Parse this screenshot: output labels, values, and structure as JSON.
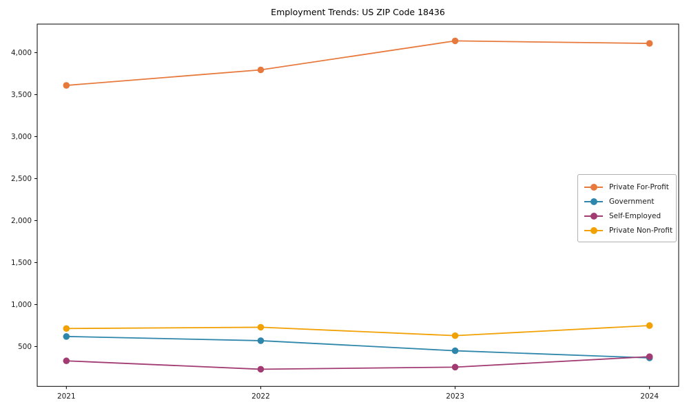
{
  "figure": {
    "title": "Employment Trends: US ZIP Code 18436"
  },
  "chart_data": {
    "type": "line",
    "title": "Employment Trends: US ZIP Code 18436",
    "xlabel": "",
    "ylabel": "",
    "x": [
      2021,
      2022,
      2023,
      2024
    ],
    "x_tick_labels": [
      "2021",
      "2022",
      "2023",
      "2024"
    ],
    "series": [
      {
        "name": "Private For-Profit",
        "color": "#E8793D",
        "values": [
          3610,
          3795,
          4140,
          4110
        ]
      },
      {
        "name": "Government",
        "color": "#2E86AB",
        "values": [
          620,
          570,
          450,
          365
        ]
      },
      {
        "name": "Self-Employed",
        "color": "#A23B72",
        "values": [
          330,
          230,
          255,
          380
        ]
      },
      {
        "name": "Private Non-Profit",
        "color": "#F2A104",
        "values": [
          715,
          730,
          630,
          750
        ]
      }
    ],
    "yticks": [
      500,
      1000,
      1500,
      2000,
      2500,
      3000,
      3500,
      4000
    ],
    "ytick_labels": [
      "500",
      "1,000",
      "1,500",
      "2,000",
      "2,500",
      "3,000",
      "3,500",
      "4,000"
    ],
    "xlim": [
      2020.85,
      2024.15
    ],
    "ylim": [
      26,
      4340
    ],
    "grid": false,
    "legend_position": "center right",
    "marker": "o",
    "axis_color": "#000000",
    "tick_label_color": "#1a1a1a"
  }
}
